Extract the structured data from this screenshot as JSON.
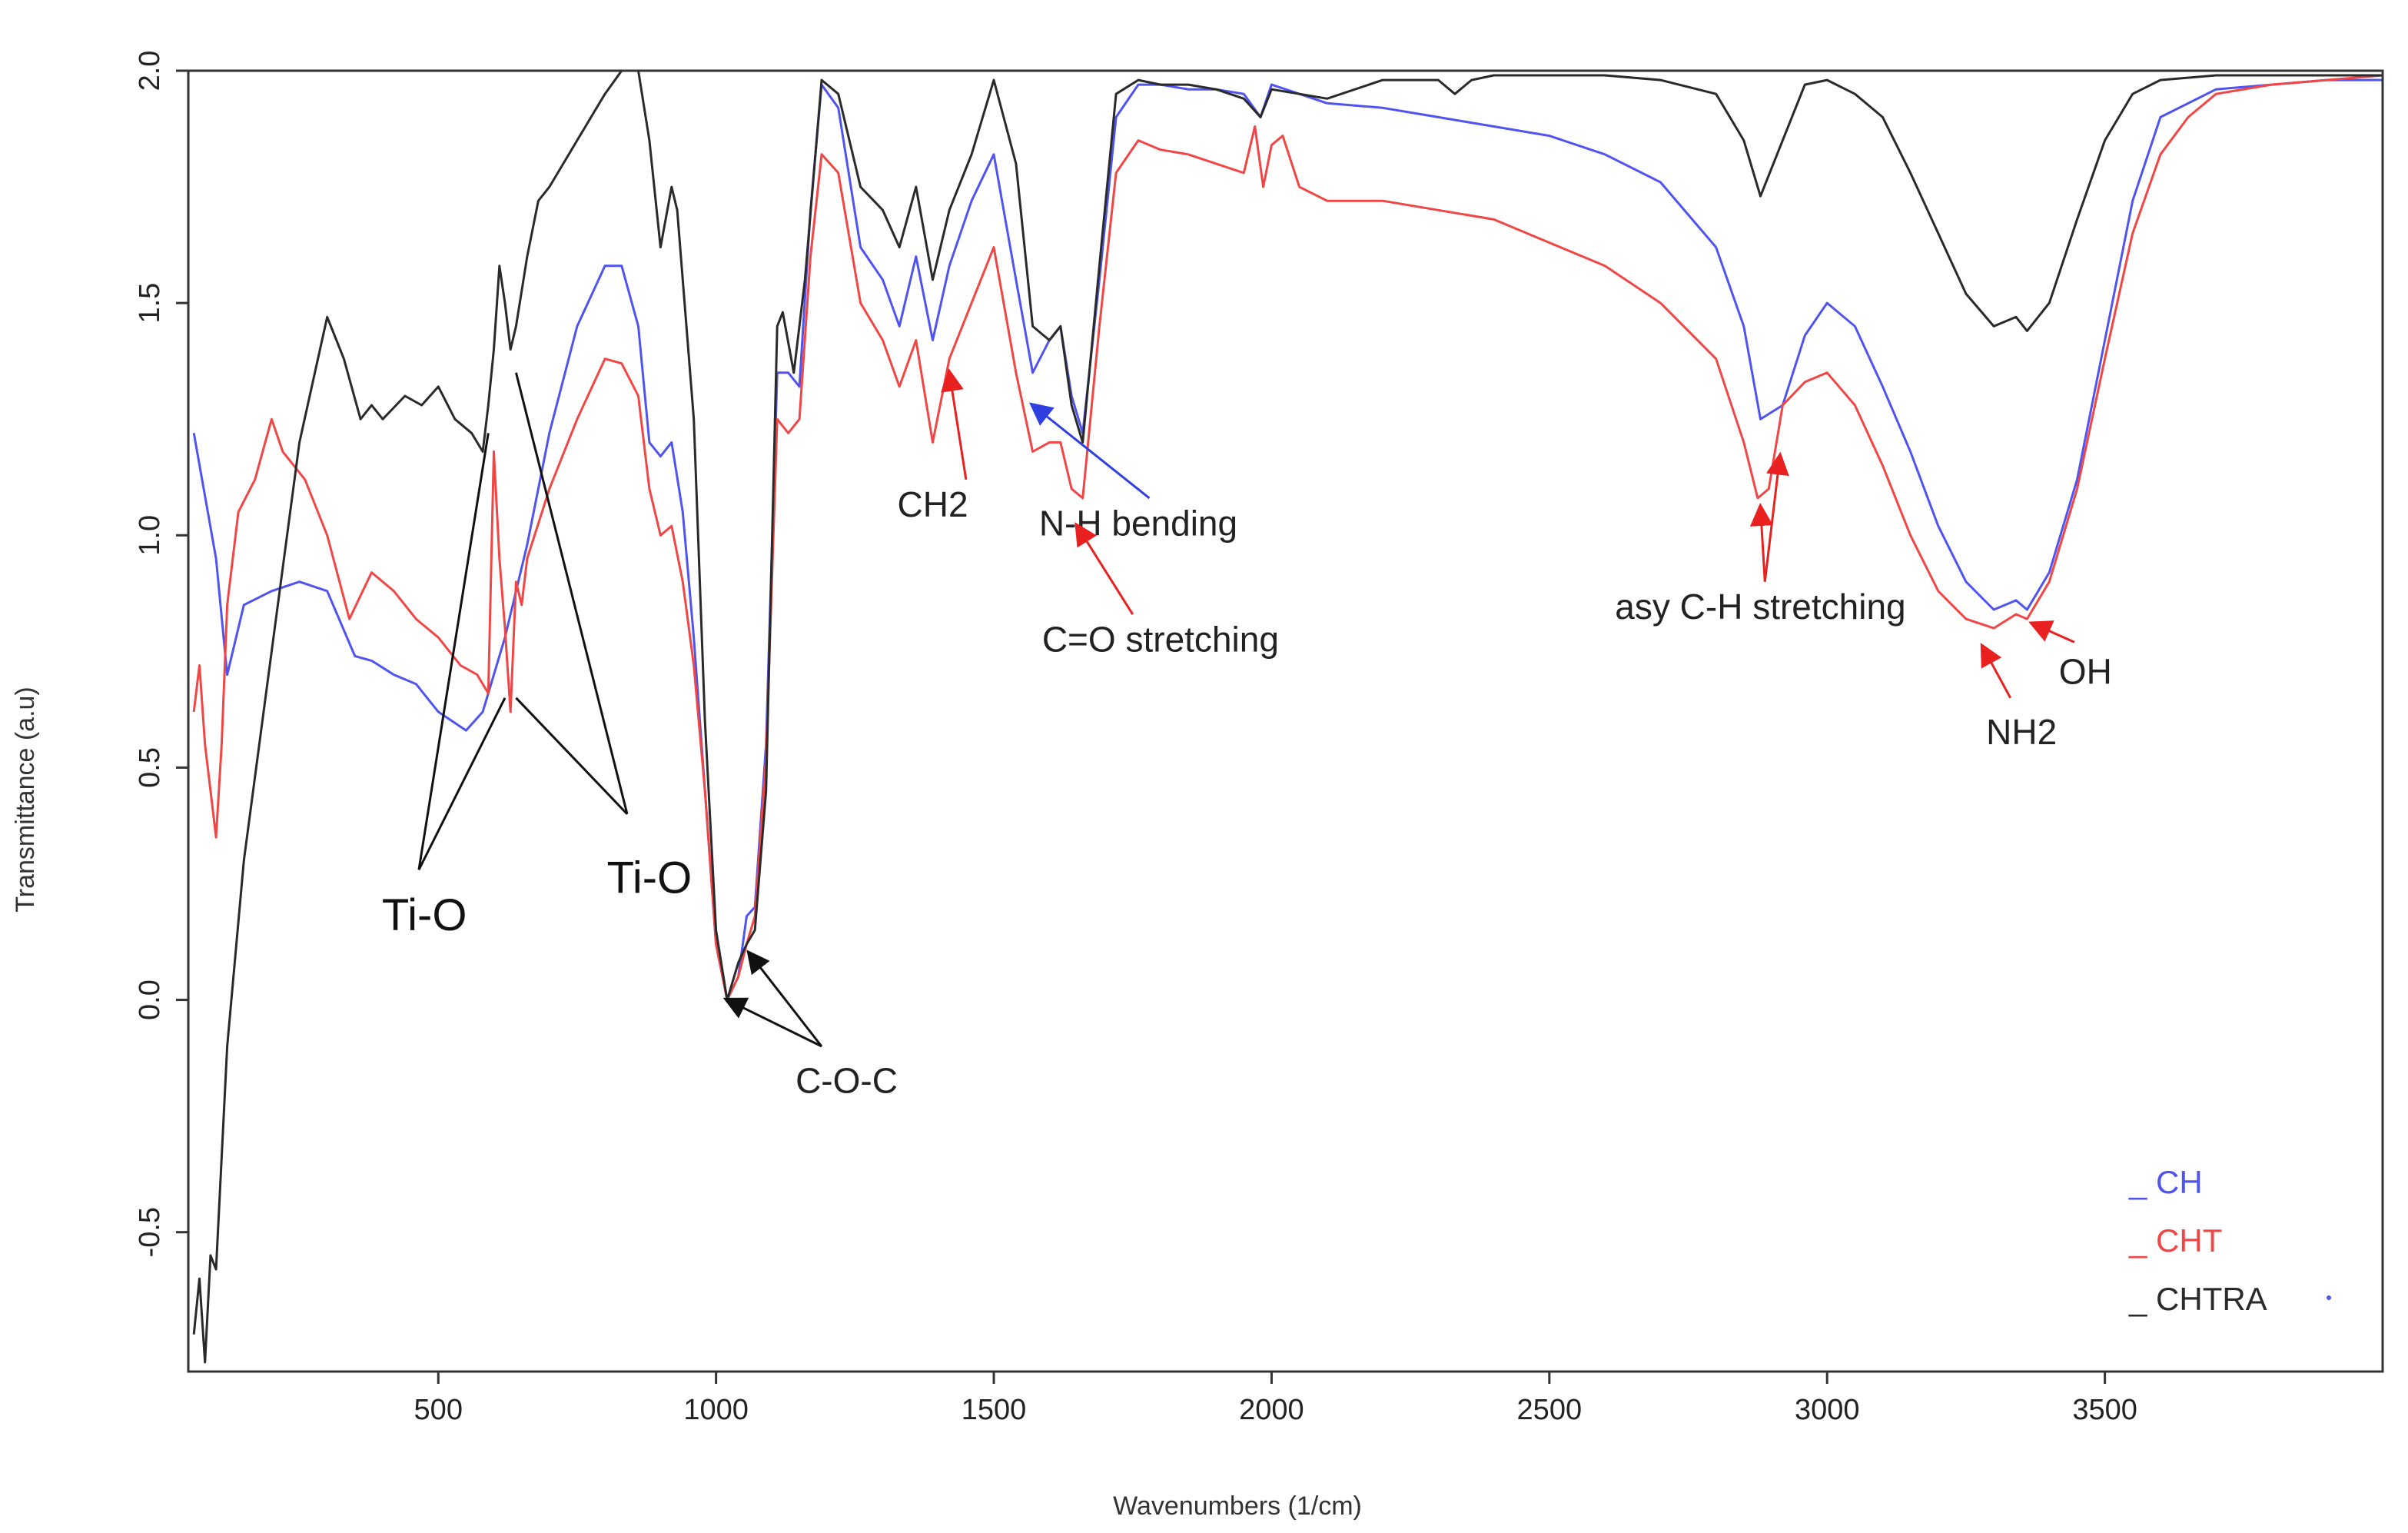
{
  "chart_data": {
    "type": "line",
    "title": "",
    "xlabel": "Wavenumbers (1/cm)",
    "ylabel": "Transmittance (a.u)",
    "xlim": [
      50,
      4000
    ],
    "ylim": [
      -0.8,
      2.0
    ],
    "xticks": [
      500,
      1000,
      1500,
      2000,
      2500,
      3000,
      3500
    ],
    "yticks": [
      -0.5,
      0.0,
      0.5,
      1.0,
      1.5,
      2.0
    ],
    "xtick_labels": [
      "500",
      "1000",
      "1500",
      "2000",
      "2500",
      "3000",
      "3500"
    ],
    "ytick_labels": [
      "-0.5",
      "0.0",
      "0.5",
      "1.0",
      "1.5",
      "2.0"
    ],
    "grid": false,
    "legend_position": "bottom-right",
    "series": [
      {
        "name": "CH",
        "legend_label": "_ CH",
        "color": "#4f54f0",
        "x": [
          60,
          100,
          120,
          150,
          200,
          250,
          300,
          350,
          380,
          420,
          460,
          500,
          550,
          580,
          620,
          660,
          700,
          750,
          800,
          830,
          860,
          880,
          900,
          920,
          940,
          960,
          980,
          1000,
          1020,
          1040,
          1055,
          1070,
          1090,
          1110,
          1130,
          1150,
          1170,
          1190,
          1220,
          1260,
          1300,
          1330,
          1360,
          1390,
          1420,
          1460,
          1500,
          1540,
          1570,
          1600,
          1620,
          1640,
          1660,
          1690,
          1720,
          1760,
          1800,
          1850,
          1900,
          1950,
          1980,
          2000,
          2050,
          2100,
          2200,
          2300,
          2400,
          2500,
          2600,
          2700,
          2800,
          2850,
          2880,
          2920,
          2960,
          3000,
          3050,
          3100,
          3150,
          3200,
          3250,
          3300,
          3340,
          3360,
          3400,
          3450,
          3500,
          3550,
          3600,
          3700,
          3800,
          3900,
          4000
        ],
        "y": [
          1.22,
          0.95,
          0.7,
          0.85,
          0.88,
          0.9,
          0.88,
          0.74,
          0.73,
          0.7,
          0.68,
          0.62,
          0.58,
          0.62,
          0.78,
          0.98,
          1.22,
          1.45,
          1.58,
          1.58,
          1.45,
          1.2,
          1.17,
          1.2,
          1.05,
          0.78,
          0.45,
          0.12,
          0.0,
          0.05,
          0.18,
          0.2,
          0.55,
          1.35,
          1.35,
          1.32,
          1.7,
          1.97,
          1.92,
          1.62,
          1.55,
          1.45,
          1.6,
          1.42,
          1.58,
          1.72,
          1.82,
          1.55,
          1.35,
          1.42,
          1.45,
          1.3,
          1.22,
          1.55,
          1.9,
          1.97,
          1.97,
          1.96,
          1.96,
          1.95,
          1.9,
          1.97,
          1.95,
          1.93,
          1.92,
          1.9,
          1.88,
          1.86,
          1.82,
          1.76,
          1.62,
          1.45,
          1.25,
          1.28,
          1.43,
          1.5,
          1.45,
          1.32,
          1.18,
          1.02,
          0.9,
          0.84,
          0.86,
          0.84,
          0.92,
          1.12,
          1.42,
          1.72,
          1.9,
          1.96,
          1.97,
          1.98,
          1.98
        ]
      },
      {
        "name": "CHT",
        "legend_label": "_ CHT",
        "color": "#f04646",
        "x": [
          60,
          70,
          80,
          90,
          100,
          110,
          120,
          140,
          170,
          200,
          220,
          260,
          300,
          340,
          380,
          420,
          460,
          500,
          540,
          570,
          590,
          600,
          610,
          620,
          630,
          640,
          650,
          660,
          700,
          750,
          800,
          830,
          860,
          880,
          900,
          920,
          940,
          960,
          980,
          1000,
          1020,
          1040,
          1055,
          1070,
          1090,
          1110,
          1130,
          1150,
          1170,
          1190,
          1220,
          1260,
          1300,
          1330,
          1360,
          1390,
          1420,
          1460,
          1500,
          1540,
          1570,
          1600,
          1620,
          1640,
          1660,
          1690,
          1720,
          1760,
          1800,
          1850,
          1900,
          1950,
          1970,
          1985,
          2000,
          2020,
          2050,
          2100,
          2200,
          2300,
          2400,
          2500,
          2600,
          2700,
          2800,
          2850,
          2875,
          2895,
          2920,
          2960,
          3000,
          3050,
          3100,
          3150,
          3200,
          3250,
          3300,
          3340,
          3360,
          3400,
          3450,
          3500,
          3550,
          3600,
          3650,
          3700,
          3800,
          3900,
          4000
        ],
        "y": [
          0.62,
          0.72,
          0.55,
          0.45,
          0.35,
          0.55,
          0.85,
          1.05,
          1.12,
          1.25,
          1.18,
          1.12,
          1.0,
          0.82,
          0.92,
          0.88,
          0.82,
          0.78,
          0.72,
          0.7,
          0.66,
          1.18,
          0.95,
          0.8,
          0.62,
          0.9,
          0.85,
          0.95,
          1.1,
          1.25,
          1.38,
          1.37,
          1.3,
          1.1,
          1.0,
          1.02,
          0.9,
          0.72,
          0.45,
          0.12,
          0.0,
          0.05,
          0.12,
          0.18,
          0.52,
          1.25,
          1.22,
          1.25,
          1.6,
          1.82,
          1.78,
          1.5,
          1.42,
          1.32,
          1.42,
          1.2,
          1.38,
          1.5,
          1.62,
          1.35,
          1.18,
          1.2,
          1.2,
          1.1,
          1.08,
          1.45,
          1.78,
          1.85,
          1.83,
          1.82,
          1.8,
          1.78,
          1.88,
          1.75,
          1.84,
          1.86,
          1.75,
          1.72,
          1.72,
          1.7,
          1.68,
          1.63,
          1.58,
          1.5,
          1.38,
          1.2,
          1.08,
          1.1,
          1.28,
          1.33,
          1.35,
          1.28,
          1.15,
          1.0,
          0.88,
          0.82,
          0.8,
          0.83,
          0.82,
          0.9,
          1.1,
          1.38,
          1.65,
          1.82,
          1.9,
          1.95,
          1.97,
          1.98,
          1.99
        ]
      },
      {
        "name": "CHTRA",
        "legend_label": "_ CHTRA",
        "color": "#2a2a2a",
        "x": [
          60,
          70,
          80,
          90,
          100,
          120,
          150,
          200,
          250,
          300,
          330,
          360,
          380,
          400,
          440,
          470,
          500,
          530,
          560,
          580,
          590,
          600,
          610,
          620,
          630,
          640,
          660,
          680,
          700,
          750,
          800,
          830,
          860,
          880,
          900,
          920,
          930,
          960,
          980,
          1000,
          1020,
          1040,
          1055,
          1070,
          1090,
          1110,
          1120,
          1140,
          1160,
          1190,
          1220,
          1260,
          1300,
          1330,
          1360,
          1390,
          1420,
          1460,
          1500,
          1540,
          1570,
          1600,
          1620,
          1640,
          1660,
          1690,
          1720,
          1760,
          1800,
          1850,
          1900,
          1950,
          1980,
          2000,
          2050,
          2100,
          2200,
          2300,
          2330,
          2360,
          2400,
          2500,
          2600,
          2700,
          2800,
          2850,
          2880,
          2920,
          2960,
          3000,
          3050,
          3100,
          3150,
          3200,
          3250,
          3300,
          3340,
          3360,
          3400,
          3450,
          3500,
          3550,
          3600,
          3700,
          3800,
          3900,
          4000
        ],
        "y": [
          -0.72,
          -0.6,
          -0.78,
          -0.55,
          -0.58,
          -0.1,
          0.3,
          0.75,
          1.2,
          1.47,
          1.38,
          1.25,
          1.28,
          1.25,
          1.3,
          1.28,
          1.32,
          1.25,
          1.22,
          1.18,
          1.28,
          1.4,
          1.58,
          1.5,
          1.4,
          1.45,
          1.6,
          1.72,
          1.75,
          1.85,
          1.95,
          2.0,
          2.0,
          1.85,
          1.62,
          1.75,
          1.7,
          1.25,
          0.6,
          0.15,
          0.0,
          0.08,
          0.12,
          0.15,
          0.45,
          1.45,
          1.48,
          1.35,
          1.55,
          1.98,
          1.95,
          1.75,
          1.7,
          1.62,
          1.75,
          1.55,
          1.7,
          1.82,
          1.98,
          1.8,
          1.45,
          1.42,
          1.45,
          1.28,
          1.2,
          1.58,
          1.95,
          1.98,
          1.97,
          1.97,
          1.96,
          1.94,
          1.9,
          1.96,
          1.95,
          1.94,
          1.98,
          1.98,
          1.95,
          1.98,
          1.99,
          1.99,
          1.99,
          1.98,
          1.95,
          1.85,
          1.73,
          1.85,
          1.97,
          1.98,
          1.95,
          1.9,
          1.78,
          1.65,
          1.52,
          1.45,
          1.47,
          1.44,
          1.5,
          1.68,
          1.85,
          1.95,
          1.98,
          1.99,
          1.99,
          1.99,
          1.99
        ]
      }
    ],
    "annotations": [
      {
        "id": "ti-o-left",
        "text": "Ti-O",
        "x": 475,
        "y": 0.15,
        "size": "big",
        "color": "#111111",
        "pointers": [
          {
            "from": [
              465,
              0.28
            ],
            "to": [
              590,
              1.22
            ]
          },
          {
            "from": [
              465,
              0.28
            ],
            "to": [
              620,
              0.65
            ]
          }
        ]
      },
      {
        "id": "ti-o-right",
        "text": "Ti-O",
        "x": 880,
        "y": 0.23,
        "size": "big",
        "color": "#111111",
        "pointers": [
          {
            "from": [
              840,
              0.4
            ],
            "to": [
              640,
              1.35
            ]
          },
          {
            "from": [
              840,
              0.4
            ],
            "to": [
              640,
              0.65
            ]
          }
        ]
      },
      {
        "id": "c-o-c",
        "text": "C-O-C",
        "x": 1235,
        "y": -0.2,
        "size": "normal",
        "color": "#222222",
        "pointers": [
          {
            "from": [
              1190,
              -0.1
            ],
            "to": [
              1020,
              0.0
            ]
          },
          {
            "from": [
              1190,
              -0.1
            ],
            "to": [
              1060,
              0.1
            ]
          }
        ]
      },
      {
        "id": "ch2",
        "text": "CH2",
        "x": 1390,
        "y": 1.04,
        "size": "normal",
        "color": "#222222",
        "pointers": [
          {
            "from": [
              1450,
              1.12
            ],
            "to": [
              1420,
              1.35
            ]
          }
        ]
      },
      {
        "id": "n-h-bending",
        "text": "N-H bending",
        "x": 1760,
        "y": 1.0,
        "size": "normal",
        "color": "#222222",
        "pointers": [
          {
            "from": [
              1780,
              1.08
            ],
            "to": [
              1570,
              1.28
            ]
          }
        ]
      },
      {
        "id": "c-o-stretching",
        "text": "C=O stretching",
        "x": 1800,
        "y": 0.75,
        "size": "normal",
        "color": "#222222",
        "pointers": [
          {
            "from": [
              1750,
              0.83
            ],
            "to": [
              1650,
              1.02
            ]
          }
        ]
      },
      {
        "id": "asy-c-h",
        "text": "asy C-H stretching",
        "x": 2880,
        "y": 0.82,
        "size": "normal",
        "color": "#222222",
        "pointers": [
          {
            "from": [
              2888,
              0.9
            ],
            "to": [
              2880,
              1.06
            ]
          },
          {
            "from": [
              2888,
              0.9
            ],
            "to": [
              2915,
              1.17
            ]
          }
        ]
      },
      {
        "id": "nh2",
        "text": "NH2",
        "x": 3350,
        "y": 0.55,
        "size": "normal",
        "color": "#222222",
        "pointers": [
          {
            "from": [
              3330,
              0.65
            ],
            "to": [
              3280,
              0.76
            ]
          }
        ]
      },
      {
        "id": "oh",
        "text": "OH",
        "x": 3465,
        "y": 0.68,
        "size": "normal",
        "color": "#222222",
        "pointers": [
          {
            "from": [
              3445,
              0.77
            ],
            "to": [
              3370,
              0.81
            ]
          }
        ]
      }
    ]
  }
}
